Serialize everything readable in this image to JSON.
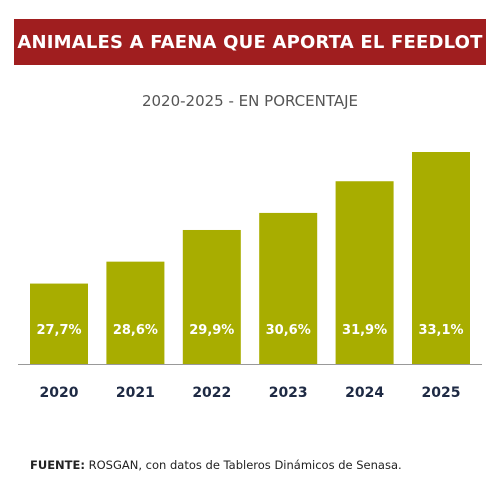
{
  "banner": {
    "title": "ANIMALES A FAENA QUE APORTA EL FEEDLOT"
  },
  "source": {
    "label": "FUENTE:",
    "text": " ROSGAN, con datos de Tableros Dinámicos de Senasa."
  },
  "colors": {
    "banner": "#a01e1f",
    "bar": "#a8ad00",
    "axis": "#999999",
    "tick_text": "#1e2a44"
  },
  "chart_data": {
    "type": "bar",
    "title": "ANIMALES A FAENA QUE APORTA EL FEEDLOT",
    "subtitle": "2020-2025 - EN PORCENTAJE",
    "categories": [
      "2020",
      "2021",
      "2022",
      "2023",
      "2024",
      "2025"
    ],
    "values": [
      27.7,
      28.6,
      29.9,
      30.6,
      31.9,
      33.1
    ],
    "value_labels": [
      "27,7%",
      "28,6%",
      "29,9%",
      "30,6%",
      "31,9%",
      "33,1%"
    ],
    "xlabel": "",
    "ylabel": "",
    "ylim": [
      24.4,
      33.1
    ],
    "grid": false,
    "legend": "none"
  }
}
